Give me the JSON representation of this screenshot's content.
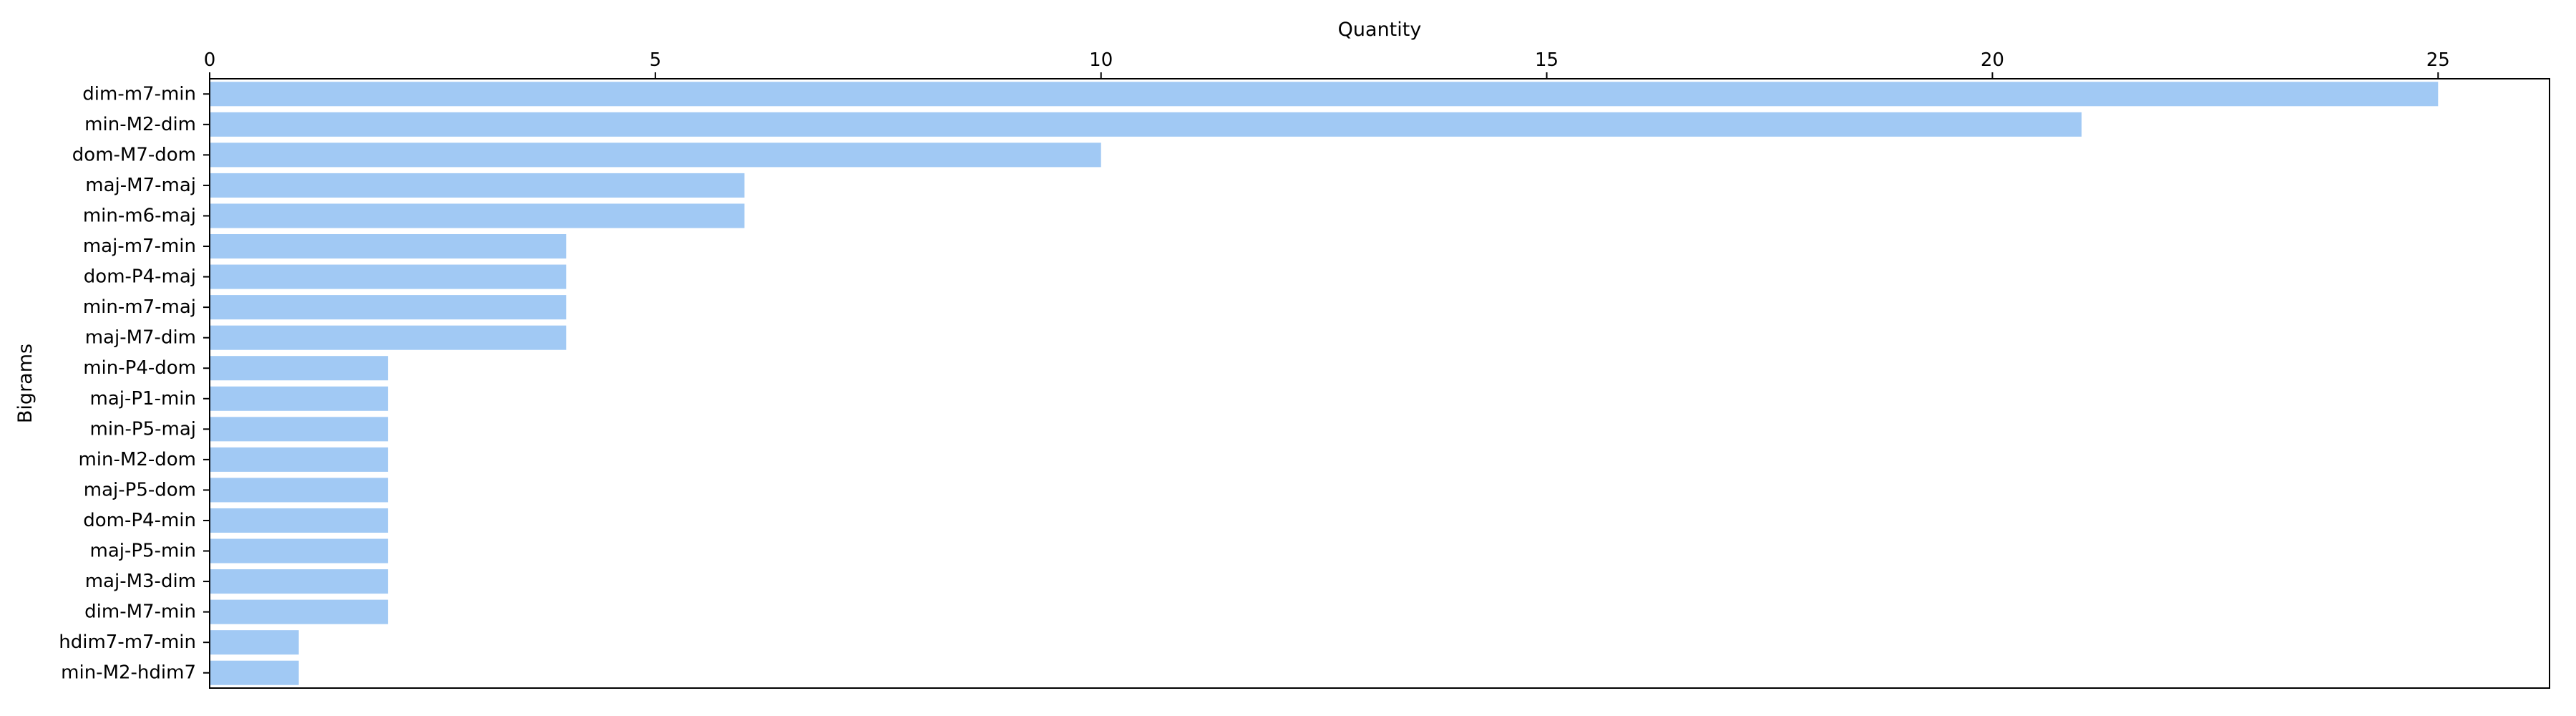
{
  "chart_data": {
    "type": "bar",
    "orientation": "horizontal",
    "title": "",
    "xlabel": "Quantity",
    "ylabel": "Bigrams",
    "x_axis_position": "top",
    "xlim": [
      0,
      26.25
    ],
    "xticks": [
      0,
      5,
      10,
      15,
      20,
      25
    ],
    "grid": false,
    "legend": "none",
    "bar_color": "#a1c9f4",
    "categories": [
      "dim-m7-min",
      "min-M2-dim",
      "dom-M7-dom",
      "maj-M7-maj",
      "min-m6-maj",
      "maj-m7-min",
      "dom-P4-maj",
      "min-m7-maj",
      "maj-M7-dim",
      "min-P4-dom",
      "maj-P1-min",
      "min-P5-maj",
      "min-M2-dom",
      "maj-P5-dom",
      "dom-P4-min",
      "maj-P5-min",
      "maj-M3-dim",
      "dim-M7-min",
      "hdim7-m7-min",
      "min-M2-hdim7"
    ],
    "values": [
      25,
      21,
      10,
      6,
      6,
      4,
      4,
      4,
      4,
      2,
      2,
      2,
      2,
      2,
      2,
      2,
      2,
      2,
      1,
      1
    ]
  }
}
